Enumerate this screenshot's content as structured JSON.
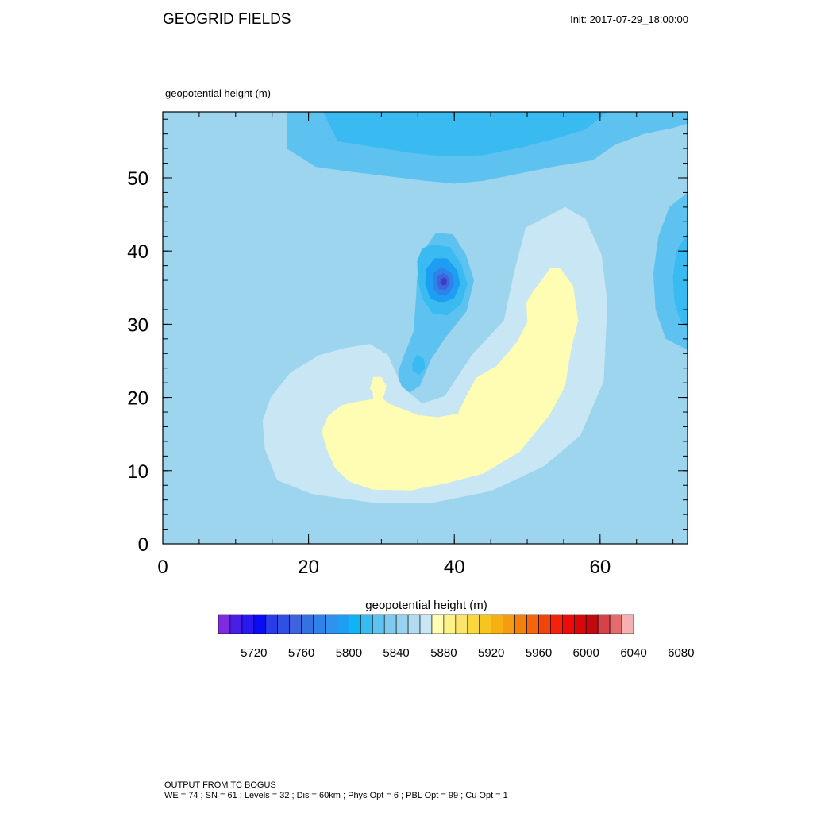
{
  "header": {
    "title": "GEOGRID FIELDS",
    "init": "Init: 2017-07-29_18:00:00"
  },
  "field_label": "geopotential height   (m)",
  "colorbar": {
    "title": "geopotential height  (m)",
    "colors": [
      "#7f29e0",
      "#4a1ee6",
      "#2a18f0",
      "#0b0bf4",
      "#2a3be8",
      "#2f50e2",
      "#3d64dc",
      "#3472e2",
      "#2f82ea",
      "#2f92ee",
      "#1d9ef2",
      "#0fb4f4",
      "#39baf1",
      "#5dc2f0",
      "#7dcbee",
      "#96d3ef",
      "#b1dcf0",
      "#c8e6f4",
      "#fffcb4",
      "#fcf28a",
      "#fce46a",
      "#f8d83c",
      "#f6c51e",
      "#f7b012",
      "#f79c10",
      "#f47f0d",
      "#f4650e",
      "#f2450c",
      "#f4210b",
      "#ee0b0b",
      "#d8070b",
      "#c4080f",
      "#d84148",
      "#e46c6e",
      "#f5b1b1"
    ],
    "labels": [
      "5720",
      "5760",
      "5800",
      "5840",
      "5880",
      "5920",
      "5960",
      "6000",
      "6040",
      "6080"
    ]
  },
  "footer": {
    "line1": "OUTPUT FROM TC BOGUS",
    "line2": "WE = 74 ; SN = 61 ; Levels = 32 ; Dis = 60km ; Phys Opt = 6 ; PBL Opt = 99 ; Cu Opt = 1"
  },
  "chart_data": {
    "type": "contour",
    "title": "GEOGRID FIELDS",
    "field": "geopotential height",
    "units": "m",
    "xlim": [
      0,
      72
    ],
    "ylim": [
      0,
      59
    ],
    "x_ticks": [
      0,
      20,
      40,
      60
    ],
    "y_ticks": [
      0,
      10,
      20,
      30,
      40,
      50
    ],
    "x_minor_step": 5,
    "y_minor_step": 2,
    "contour_interval": 10,
    "regions": [
      {
        "name": "low-north-band",
        "level": 5850,
        "color": "#5dc2f0",
        "points": [
          [
            17,
            59
          ],
          [
            17,
            54
          ],
          [
            21,
            51.5
          ],
          [
            26,
            50.8
          ],
          [
            31,
            50.2
          ],
          [
            36,
            49.6
          ],
          [
            40,
            49.2
          ],
          [
            44,
            49.6
          ],
          [
            49,
            50.6
          ],
          [
            54,
            51.6
          ],
          [
            59,
            52.4
          ],
          [
            62,
            54.5
          ],
          [
            66,
            56
          ],
          [
            70,
            56.8
          ],
          [
            72,
            57.4
          ],
          [
            72,
            59
          ]
        ]
      },
      {
        "name": "low-north-core",
        "level": 5840,
        "color": "#39baf1",
        "points": [
          [
            22,
            59
          ],
          [
            24,
            55
          ],
          [
            29,
            54.2
          ],
          [
            34,
            53.4
          ],
          [
            39,
            52.9
          ],
          [
            44,
            53.1
          ],
          [
            49,
            54.1
          ],
          [
            54,
            55.4
          ],
          [
            58,
            56.6
          ],
          [
            61,
            59
          ]
        ]
      },
      {
        "name": "low-east",
        "level": 5850,
        "color": "#5dc2f0",
        "points": [
          [
            72,
            48
          ],
          [
            69.5,
            46
          ],
          [
            68,
            42
          ],
          [
            67.3,
            37
          ],
          [
            67.6,
            32
          ],
          [
            69,
            28
          ],
          [
            72,
            26.5
          ]
        ]
      },
      {
        "name": "low-east-core",
        "level": 5840,
        "color": "#39baf1",
        "points": [
          [
            72,
            42.5
          ],
          [
            70.5,
            40
          ],
          [
            70,
            36.5
          ],
          [
            70.2,
            33
          ],
          [
            71,
            30.5
          ],
          [
            72,
            29.5
          ]
        ]
      },
      {
        "name": "tc-outer",
        "level": 5850,
        "color": "#5dc2f0",
        "points": [
          [
            32.5,
            21.2
          ],
          [
            32.3,
            23.5
          ],
          [
            33.2,
            26
          ],
          [
            34.4,
            29
          ],
          [
            34.7,
            33
          ],
          [
            34.9,
            36.5
          ],
          [
            35.7,
            40
          ],
          [
            37.5,
            42.5
          ],
          [
            39.8,
            42.3
          ],
          [
            41.6,
            39.5
          ],
          [
            42.7,
            36
          ],
          [
            41.7,
            31.8
          ],
          [
            38.8,
            28.2
          ],
          [
            36.8,
            25.2
          ],
          [
            35.3,
            21.6
          ],
          [
            33.8,
            20.6
          ]
        ]
      },
      {
        "name": "tc-ring1",
        "level": 5840,
        "color": "#39baf1",
        "points": [
          [
            34.9,
            38.6
          ],
          [
            35.6,
            40.4
          ],
          [
            37.2,
            40.9
          ],
          [
            39.5,
            40.5
          ],
          [
            41,
            38.1
          ],
          [
            41.8,
            35.5
          ],
          [
            41,
            32.8
          ],
          [
            39,
            31.2
          ],
          [
            37,
            31.5
          ],
          [
            35.6,
            33.5
          ],
          [
            35,
            36
          ]
        ]
      },
      {
        "name": "tc-ring2",
        "level": 5830,
        "color": "#1d9ef2",
        "points": [
          [
            36.1,
            37.5
          ],
          [
            37.3,
            39
          ],
          [
            39,
            39
          ],
          [
            40.4,
            37.4
          ],
          [
            40.8,
            35.5
          ],
          [
            40,
            33.6
          ],
          [
            38.3,
            32.9
          ],
          [
            36.7,
            33.5
          ],
          [
            36,
            35.5
          ]
        ]
      },
      {
        "name": "tc-ring3",
        "level": 5820,
        "color": "#2f82ea",
        "points": [
          [
            37.1,
            37
          ],
          [
            38.3,
            37.8
          ],
          [
            39.6,
            37
          ],
          [
            40,
            35.5
          ],
          [
            39.3,
            34.2
          ],
          [
            38,
            33.9
          ],
          [
            37.1,
            34.8
          ]
        ]
      },
      {
        "name": "tc-ring4",
        "level": 5800,
        "color": "#3d64dc",
        "points": [
          [
            37.7,
            36.5
          ],
          [
            38.5,
            37
          ],
          [
            39.2,
            36.4
          ],
          [
            39.4,
            35.5
          ],
          [
            38.8,
            34.7
          ],
          [
            37.9,
            34.8
          ],
          [
            37.6,
            35.6
          ]
        ]
      },
      {
        "name": "tc-eye",
        "level": 5770,
        "color": "#3a3cc8",
        "points": [
          [
            38.1,
            36.1
          ],
          [
            38.6,
            36.4
          ],
          [
            39,
            36
          ],
          [
            38.9,
            35.4
          ],
          [
            38.4,
            35.3
          ],
          [
            38.1,
            35.7
          ]
        ]
      },
      {
        "name": "secondary-low",
        "level": 5840,
        "color": "#39baf1",
        "points": [
          [
            34.2,
            24.5
          ],
          [
            34.8,
            25.8
          ],
          [
            35.8,
            25.3
          ],
          [
            36,
            24
          ],
          [
            35.2,
            23.1
          ],
          [
            34.3,
            23.6
          ]
        ]
      },
      {
        "name": "ridge-880",
        "level": 5880,
        "color": "#c8e6f4",
        "points": [
          [
            14,
            13
          ],
          [
            13.7,
            16.8
          ],
          [
            14.8,
            20
          ],
          [
            17.5,
            23.4
          ],
          [
            21.5,
            25.8
          ],
          [
            25.2,
            26.8
          ],
          [
            28.4,
            27.3
          ],
          [
            30.9,
            25.8
          ],
          [
            32.8,
            21.5
          ],
          [
            35.6,
            19.2
          ],
          [
            38.7,
            20.2
          ],
          [
            42.4,
            25.8
          ],
          [
            46.8,
            30.5
          ],
          [
            48.3,
            37.5
          ],
          [
            49.8,
            43.2
          ],
          [
            55.2,
            46
          ],
          [
            58,
            44.4
          ],
          [
            60.2,
            39.5
          ],
          [
            61,
            33
          ],
          [
            60.5,
            22.2
          ],
          [
            57.3,
            14.8
          ],
          [
            52.3,
            10.6
          ],
          [
            45,
            7.2
          ],
          [
            37,
            5.6
          ],
          [
            29,
            5.6
          ],
          [
            20.5,
            6.8
          ],
          [
            15.7,
            8.7
          ]
        ]
      },
      {
        "name": "high-890",
        "level": 5890,
        "color": "#fffcb4",
        "points": [
          [
            21.8,
            15.4
          ],
          [
            22.4,
            13.2
          ],
          [
            23.6,
            10.4
          ],
          [
            25.6,
            8.5
          ],
          [
            28.8,
            7.4
          ],
          [
            34,
            7.3
          ],
          [
            39,
            8.3
          ],
          [
            44,
            9.6
          ],
          [
            49,
            12.6
          ],
          [
            53,
            17.5
          ],
          [
            55.2,
            21.5
          ],
          [
            56,
            26.5
          ],
          [
            57,
            30.5
          ],
          [
            56.3,
            35.2
          ],
          [
            54.6,
            37.6
          ],
          [
            53.2,
            37.7
          ],
          [
            52.1,
            36.2
          ],
          [
            50.8,
            34.5
          ],
          [
            49.9,
            33
          ],
          [
            50,
            30.3
          ],
          [
            48.6,
            27.6
          ],
          [
            45.8,
            24.3
          ],
          [
            43,
            22.7
          ],
          [
            41.5,
            19.9
          ],
          [
            40.5,
            17.8
          ],
          [
            37.8,
            17.3
          ],
          [
            35,
            17.6
          ],
          [
            31,
            19.2
          ],
          [
            30.2,
            19.8
          ],
          [
            30.7,
            21.5
          ],
          [
            30,
            22.8
          ],
          [
            28.9,
            22.8
          ],
          [
            28.4,
            21.2
          ],
          [
            28.8,
            20.8
          ],
          [
            28.9,
            19.8
          ],
          [
            26,
            19.3
          ],
          [
            24.5,
            18.9
          ],
          [
            22.7,
            17.5
          ]
        ]
      }
    ]
  }
}
